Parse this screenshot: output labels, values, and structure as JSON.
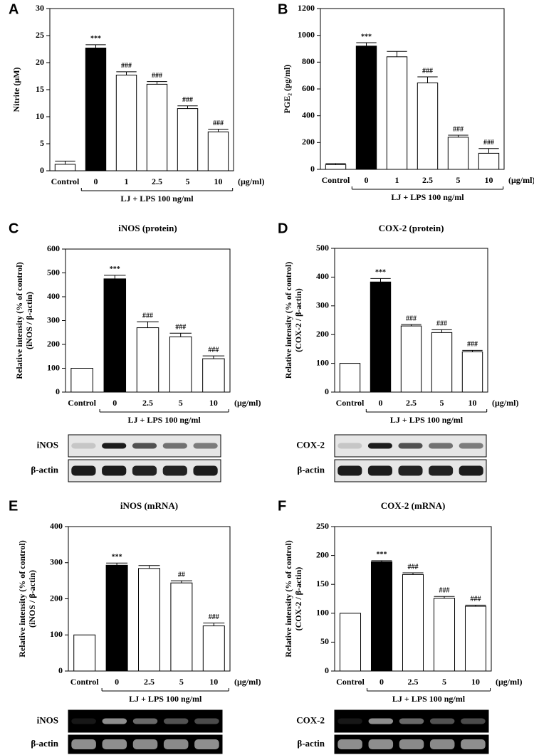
{
  "chart_data": [
    {
      "type": "bar",
      "panel": "A",
      "ylabel": [
        "Nitrite (μM)"
      ],
      "categories": [
        "Control",
        "0",
        "1",
        "2.5",
        "5",
        "10"
      ],
      "values": [
        1.2,
        22.7,
        17.7,
        16.0,
        11.5,
        7.2
      ],
      "errors": [
        0.6,
        0.6,
        0.6,
        0.5,
        0.5,
        0.5
      ],
      "significance": [
        null,
        "***",
        "###",
        "###",
        "###",
        "###"
      ],
      "colors": [
        "#ffffff",
        "#000000",
        "#ffffff",
        "#ffffff",
        "#ffffff",
        "#ffffff"
      ],
      "ylim": [
        0,
        30
      ],
      "yticks": [
        0,
        5,
        10,
        15,
        20,
        25,
        30
      ],
      "unit": "(μg/ml)",
      "xlabel": "LJ + LPS 100 ng/ml"
    },
    {
      "type": "bar",
      "panel": "B",
      "ylabel": [
        "PGE₂ (pg/ml)"
      ],
      "categories": [
        "Control",
        "0",
        "1",
        "2.5",
        "5",
        "10"
      ],
      "values": [
        35,
        920,
        840,
        645,
        240,
        120
      ],
      "errors": [
        8,
        25,
        40,
        45,
        15,
        35
      ],
      "significance": [
        null,
        "***",
        null,
        "###",
        "###",
        "###"
      ],
      "colors": [
        "#ffffff",
        "#000000",
        "#ffffff",
        "#ffffff",
        "#ffffff",
        "#ffffff"
      ],
      "ylim": [
        0,
        1200
      ],
      "yticks": [
        0,
        200,
        400,
        600,
        800,
        1000,
        1200
      ],
      "unit": "(μg/ml)",
      "xlabel": "LJ + LPS 100 ng/ml"
    },
    {
      "type": "bar",
      "panel": "C",
      "title": "iNOS (protein)",
      "ylabel": [
        "Relative intensity (% of control)",
        "(iNOS / β-actin)"
      ],
      "categories": [
        "Control",
        "0",
        "2.5",
        "5",
        "10"
      ],
      "values": [
        100,
        475,
        270,
        232,
        140
      ],
      "errors": [
        0,
        15,
        25,
        15,
        12
      ],
      "significance": [
        null,
        "***",
        "###",
        "###",
        "###"
      ],
      "colors": [
        "#ffffff",
        "#000000",
        "#ffffff",
        "#ffffff",
        "#ffffff"
      ],
      "ylim": [
        0,
        600
      ],
      "yticks": [
        0,
        100,
        200,
        300,
        400,
        500,
        600
      ],
      "unit": "(μg/ml)",
      "xlabel": "LJ + LPS 100 ng/ml",
      "blots": [
        "iNOS",
        "β-actin"
      ],
      "blot_style": "western"
    },
    {
      "type": "bar",
      "panel": "D",
      "title": "COX-2 (protein)",
      "ylabel": [
        "Relative intensity (% of control)",
        "(COX-2 / β-actin)"
      ],
      "categories": [
        "Control",
        "0",
        "2.5",
        "5",
        "10"
      ],
      "values": [
        100,
        383,
        230,
        207,
        140
      ],
      "errors": [
        0,
        12,
        5,
        10,
        5
      ],
      "significance": [
        null,
        "***",
        "###",
        "###",
        "###"
      ],
      "colors": [
        "#ffffff",
        "#000000",
        "#ffffff",
        "#ffffff",
        "#ffffff"
      ],
      "ylim": [
        0,
        500
      ],
      "yticks": [
        0,
        100,
        200,
        300,
        400,
        500
      ],
      "unit": "(μg/ml)",
      "xlabel": "LJ + LPS 100 ng/ml",
      "blots": [
        "COX-2",
        "β-actin"
      ],
      "blot_style": "western"
    },
    {
      "type": "bar",
      "panel": "E",
      "title": "iNOS (mRNA)",
      "ylabel": [
        "Relative intensity (% of control)",
        "(iNOS / β-actin)"
      ],
      "categories": [
        "Control",
        "0",
        "2.5",
        "5",
        "10"
      ],
      "values": [
        100,
        293,
        284,
        244,
        125
      ],
      "errors": [
        0,
        6,
        8,
        6,
        8
      ],
      "significance": [
        null,
        "***",
        null,
        "##",
        "###"
      ],
      "colors": [
        "#ffffff",
        "#000000",
        "#ffffff",
        "#ffffff",
        "#ffffff"
      ],
      "ylim": [
        0,
        400
      ],
      "yticks": [
        0,
        100,
        200,
        300,
        400
      ],
      "unit": "(μg/ml)",
      "xlabel": "LJ + LPS 100 ng/ml",
      "blots": [
        "iNOS",
        "β-actin"
      ],
      "blot_style": "gel"
    },
    {
      "type": "bar",
      "panel": "F",
      "title": "COX-2 (mRNA)",
      "ylabel": [
        "Relative intensity (% of control)",
        "(COX-2 / β-actin)"
      ],
      "categories": [
        "Control",
        "0",
        "2.5",
        "5",
        "10"
      ],
      "values": [
        100,
        189,
        167,
        126,
        112
      ],
      "errors": [
        0,
        2,
        3,
        3,
        2
      ],
      "significance": [
        null,
        "***",
        "###",
        "###",
        "###"
      ],
      "colors": [
        "#ffffff",
        "#000000",
        "#ffffff",
        "#ffffff",
        "#ffffff"
      ],
      "ylim": [
        0,
        250
      ],
      "yticks": [
        0,
        50,
        100,
        150,
        200,
        250
      ],
      "unit": "(μg/ml)",
      "xlabel": "LJ + LPS 100 ng/ml",
      "blots": [
        "COX-2",
        "β-actin"
      ],
      "blot_style": "gel"
    }
  ]
}
